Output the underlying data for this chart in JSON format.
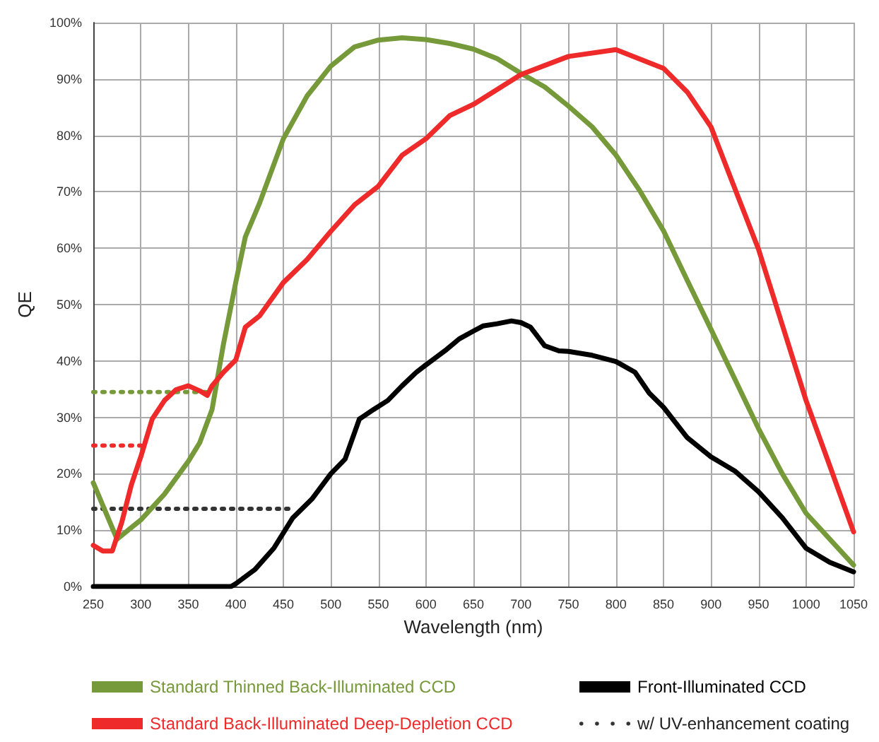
{
  "chart_data": {
    "type": "line",
    "xlabel": "Wavelength (nm)",
    "ylabel": "QE",
    "xlim": [
      250,
      1050
    ],
    "xticks": [
      250,
      300,
      350,
      400,
      450,
      500,
      550,
      600,
      650,
      700,
      750,
      800,
      850,
      900,
      950,
      1000,
      1050
    ],
    "ylim": [
      0,
      100
    ],
    "yticks": [
      {
        "value": 0,
        "label": "0%"
      },
      {
        "value": 10,
        "label": "10%"
      },
      {
        "value": 20,
        "label": "20%"
      },
      {
        "value": 30,
        "label": "30%"
      },
      {
        "value": 40,
        "label": "40%"
      },
      {
        "value": 50,
        "label": "50%"
      },
      {
        "value": 60,
        "label": "60%"
      },
      {
        "value": 70,
        "label": "70%"
      },
      {
        "value": 80,
        "label": "80%"
      },
      {
        "value": 90,
        "label": "90%"
      },
      {
        "value": 100,
        "label": "100%"
      }
    ],
    "grid": true,
    "legend": "bottom",
    "marker": "none",
    "series": [
      {
        "name": "Standard Thinned Back-Illuminated CCD",
        "color": "#76993a",
        "line_style": "solid",
        "x": [
          250,
          275,
          300,
          325,
          350,
          362,
          375,
          387,
          400,
          410,
          425,
          450,
          475,
          500,
          525,
          550,
          575,
          600,
          625,
          650,
          675,
          700,
          725,
          750,
          775,
          800,
          825,
          850,
          875,
          900,
          925,
          950,
          975,
          1000,
          1050
        ],
        "values": [
          18.4,
          8.4,
          11.8,
          16.4,
          22.2,
          25.5,
          31.4,
          43,
          54,
          62,
          68,
          79.4,
          87,
          92.3,
          95.7,
          96.9,
          97.3,
          97,
          96.3,
          95.3,
          93.6,
          91,
          88.6,
          85.2,
          81.5,
          76.5,
          70.2,
          63.1,
          54.3,
          45.6,
          36.8,
          28,
          20,
          13,
          3.8
        ]
      },
      {
        "name": "Standard Back-Illuminated Deep-Depletion CCD",
        "color": "#ee2a2a",
        "line_style": "solid",
        "x": [
          250,
          260,
          270,
          280,
          290,
          300,
          312,
          325,
          337,
          350,
          362,
          370,
          375,
          387,
          400,
          410,
          425,
          450,
          475,
          500,
          525,
          550,
          575,
          600,
          625,
          650,
          700,
          750,
          800,
          850,
          875,
          900,
          925,
          950,
          975,
          1000,
          1025,
          1050
        ],
        "values": [
          7.3,
          6.3,
          6.3,
          11.4,
          18,
          23,
          29.7,
          33,
          34.9,
          35.6,
          34.7,
          33.9,
          35.6,
          38,
          40.2,
          46,
          48,
          53.9,
          58,
          63,
          67.7,
          71,
          76.5,
          79.4,
          83.5,
          85.5,
          90.8,
          94,
          95.2,
          91.9,
          87.7,
          81.5,
          70.6,
          59.8,
          46.4,
          33,
          21.4,
          9.7
        ]
      },
      {
        "name": "Front-Illuminated CCD",
        "color": "#000000",
        "line_style": "solid",
        "x": [
          250,
          395,
          400,
          420,
          440,
          460,
          480,
          500,
          515,
          530,
          545,
          560,
          575,
          590,
          600,
          620,
          635,
          650,
          660,
          675,
          690,
          700,
          710,
          725,
          740,
          750,
          775,
          800,
          820,
          835,
          850,
          875,
          900,
          925,
          950,
          975,
          1000,
          1025,
          1050
        ],
        "values": [
          0,
          0,
          0.5,
          3,
          6.8,
          12.2,
          15.5,
          20,
          22.6,
          29.7,
          31.4,
          33,
          35.6,
          38,
          39.3,
          41.8,
          43.9,
          45.3,
          46.2,
          46.6,
          47.1,
          46.8,
          46,
          42.7,
          41.8,
          41.7,
          41,
          39.9,
          38,
          34.3,
          31.8,
          26.4,
          23,
          20.5,
          16.8,
          12.2,
          6.8,
          4.3,
          2.6
        ]
      },
      {
        "name": "w/ UV-enhancement coating",
        "color": "#333333",
        "line_style": "dotted",
        "x": [
          250,
          460
        ],
        "values": [
          13.8,
          13.8
        ]
      },
      {
        "color": "#76993a",
        "line_style": "dotted",
        "x": [
          250,
          370
        ],
        "values": [
          34.5,
          34.5
        ]
      },
      {
        "color": "#ee2a2a",
        "line_style": "dotted",
        "x": [
          250,
          300
        ],
        "values": [
          25,
          25
        ]
      }
    ]
  }
}
